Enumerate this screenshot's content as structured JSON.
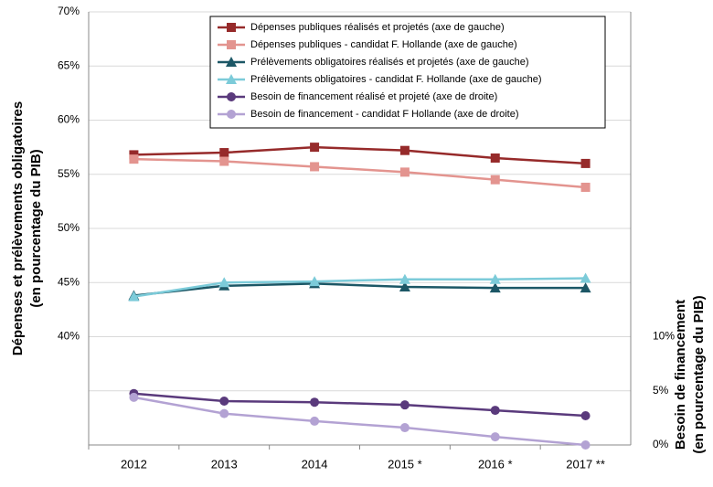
{
  "chart_data": {
    "type": "line",
    "categories": [
      "2012",
      "2013",
      "2014",
      "2015 *",
      "2016 *",
      "2017 **"
    ],
    "ylabel": [
      "Dépenses et prélèvements obligatoires",
      "(en pourcentage du PIB)"
    ],
    "y2label": [
      "Besoin de financement",
      "(en pourcentage du PIB)"
    ],
    "ylim": [
      30,
      70
    ],
    "yticks": [
      {
        "value": 40,
        "label": "40%"
      },
      {
        "value": 45,
        "label": "45%"
      },
      {
        "value": 50,
        "label": "50%"
      },
      {
        "value": 55,
        "label": "55%"
      },
      {
        "value": 60,
        "label": "60%"
      },
      {
        "value": 65,
        "label": "65%"
      },
      {
        "value": 70,
        "label": "70%"
      }
    ],
    "y2lim": [
      0,
      40
    ],
    "y2ticks": [
      {
        "value": 0,
        "label": "0%"
      },
      {
        "value": 5,
        "label": "5%"
      },
      {
        "value": 10,
        "label": "10%"
      }
    ],
    "grid": true,
    "legend": "top",
    "series": [
      {
        "name": "Dépenses publiques réalisés et projetés (axe de gauche)",
        "color": "#962a2a",
        "marker": "square",
        "values": [
          56.8,
          57.0,
          57.5,
          57.2,
          56.5,
          56.0
        ]
      },
      {
        "name": "Dépenses publiques - candidat F. Hollande (axe de gauche)",
        "color": "#e3948f",
        "marker": "square",
        "values": [
          56.4,
          56.2,
          55.7,
          55.2,
          54.5,
          53.8
        ]
      },
      {
        "name": "Prélèvements obligatoires réalisés et projetés (axe de gauche)",
        "color": "#1c5766",
        "marker": "triangle",
        "values": [
          43.8,
          44.7,
          44.9,
          44.6,
          44.5,
          44.5
        ]
      },
      {
        "name": "Prélèvements obligatoires - candidat F. Hollande (axe de gauche)",
        "color": "#7ccbd9",
        "marker": "triangle",
        "values": [
          43.7,
          45.0,
          45.1,
          45.3,
          45.3,
          45.4
        ]
      },
      {
        "name": "Besoin de financement réalisé et projeté (axe de droite)",
        "color": "#5a3a7c",
        "marker": "circle",
        "axis": "y2",
        "values": [
          4.75,
          4.05,
          3.95,
          3.7,
          3.2,
          2.7
        ]
      },
      {
        "name": "Besoin de financement - candidat F Hollande (axe de droite)",
        "color": "#b3a2d3",
        "marker": "circle",
        "axis": "y2",
        "values": [
          4.4,
          2.9,
          2.2,
          1.6,
          0.75,
          0
        ]
      }
    ]
  }
}
